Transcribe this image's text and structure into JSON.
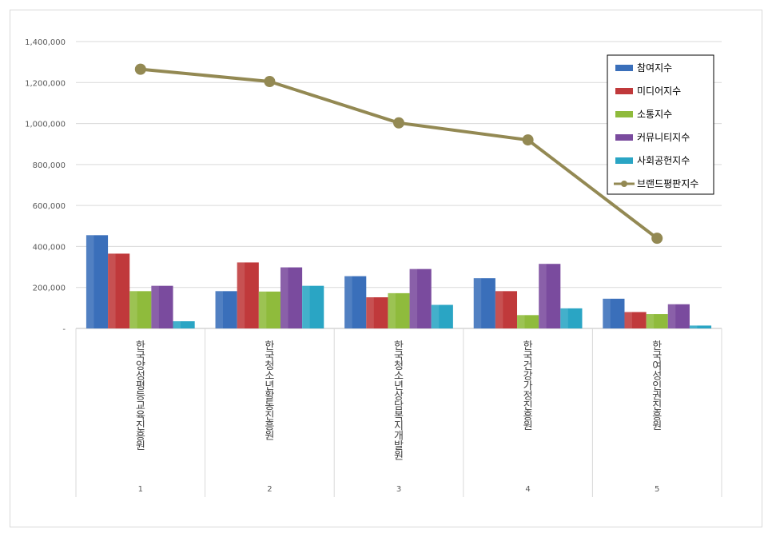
{
  "chart_data": {
    "type": "bar",
    "x": [
      "1",
      "2",
      "3",
      "4",
      "5"
    ],
    "categories": [
      "한국양성평등교육진흥원",
      "한국청소년활동진흥원",
      "한국청소년상담복지개발원",
      "한국건강가정진흥원",
      "한국여성인권진흥원"
    ],
    "y_ticks": [
      "-",
      "200,000",
      "400,000",
      "600,000",
      "800,000",
      "1,000,000",
      "1,200,000",
      "1,400,000"
    ],
    "ylim": [
      0,
      1400000
    ],
    "grid": true,
    "legend_position": "top-right",
    "series": [
      {
        "name": "참여지수",
        "type": "bar",
        "color": "#3a6fba",
        "values": [
          455000,
          182000,
          255000,
          245000,
          145000
        ]
      },
      {
        "name": "미디어지수",
        "type": "bar",
        "color": "#c0393b",
        "values": [
          365000,
          322000,
          152000,
          182000,
          80000
        ]
      },
      {
        "name": "소통지수",
        "type": "bar",
        "color": "#8fbb3c",
        "values": [
          182000,
          180000,
          172000,
          65000,
          70000
        ]
      },
      {
        "name": "커뮤니티지수",
        "type": "bar",
        "color": "#7a4b9e",
        "values": [
          208000,
          298000,
          290000,
          315000,
          118000
        ]
      },
      {
        "name": "사회공헌지수",
        "type": "bar",
        "color": "#2aa5c4",
        "values": [
          35000,
          208000,
          115000,
          98000,
          14000
        ]
      },
      {
        "name": "브랜드평판지수",
        "type": "line",
        "color": "#938953",
        "values": [
          1265000,
          1205000,
          1003000,
          920000,
          440000
        ]
      }
    ]
  }
}
